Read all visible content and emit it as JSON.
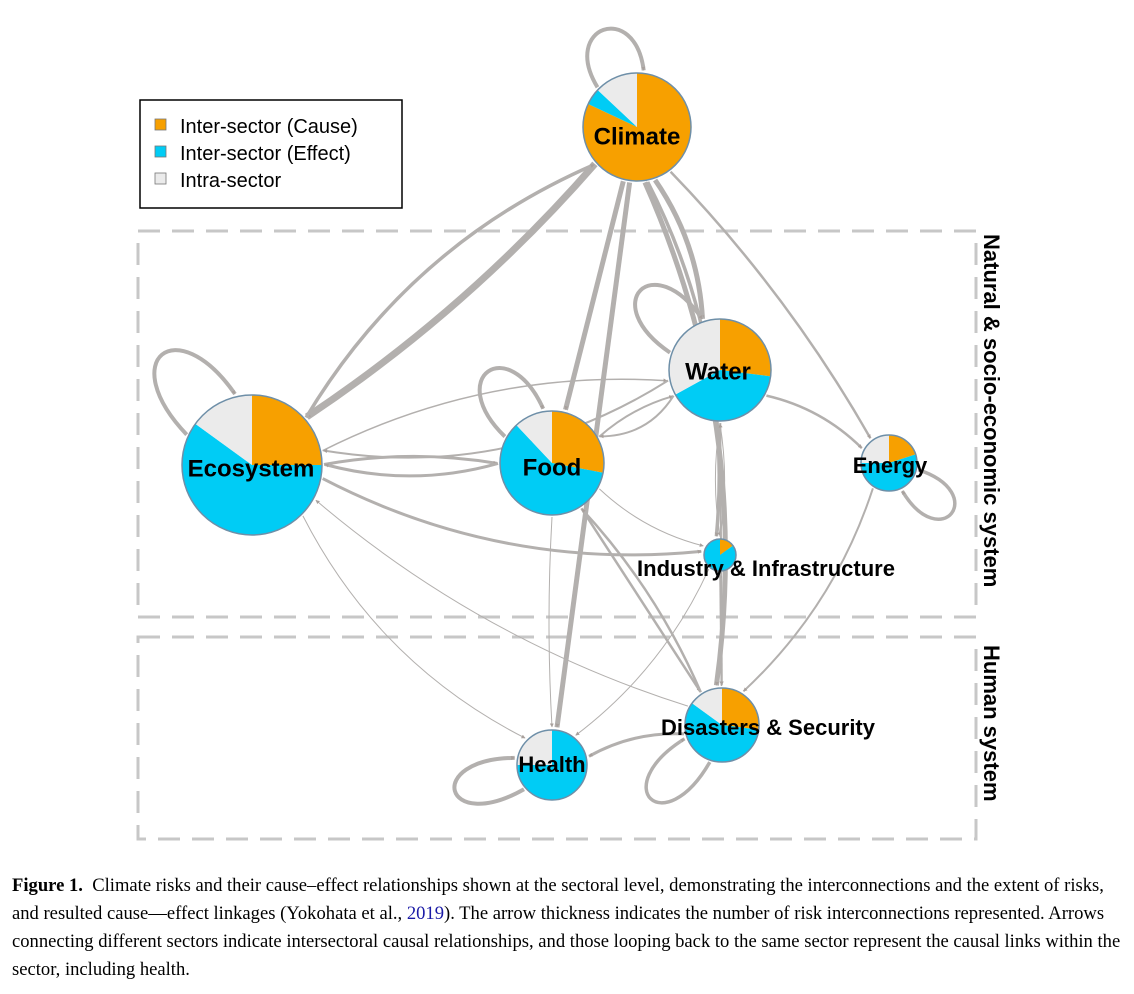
{
  "legend": {
    "items": [
      {
        "label": "Inter-sector (Cause)",
        "color": "#F7A000"
      },
      {
        "label": "Inter-sector (Effect)",
        "color": "#00CCF5"
      },
      {
        "label": "Intra-sector",
        "color": "#EBEBEB"
      }
    ]
  },
  "regions": {
    "natural": "Natural & socio-economic system",
    "human": "Human system"
  },
  "colors": {
    "cause": "#F7A000",
    "effect": "#00CCF5",
    "intra": "#EBEBEB",
    "edge": "#B3B0AE",
    "arrowhead": "#A8A09C"
  },
  "nodes": [
    {
      "id": "climate",
      "label": "Climate",
      "cause": 0.82,
      "effect": 0.05,
      "intra": 0.13
    },
    {
      "id": "ecosystem",
      "label": "Ecosystem",
      "cause": 0.25,
      "effect": 0.6,
      "intra": 0.15
    },
    {
      "id": "food",
      "label": "Food",
      "cause": 0.28,
      "effect": 0.6,
      "intra": 0.12
    },
    {
      "id": "water",
      "label": "Water",
      "cause": 0.27,
      "effect": 0.4,
      "intra": 0.33
    },
    {
      "id": "energy",
      "label": "Energy",
      "cause": 0.2,
      "effect": 0.55,
      "intra": 0.25
    },
    {
      "id": "industry",
      "label": "Industry & Infrastructure",
      "cause": 0.15,
      "effect": 0.85,
      "intra": 0.0
    },
    {
      "id": "disasters",
      "label": "Disasters & Security",
      "cause": 0.27,
      "effect": 0.58,
      "intra": 0.15
    },
    {
      "id": "health",
      "label": "Health",
      "cause": 0.0,
      "effect": 0.75,
      "intra": 0.25
    }
  ],
  "caption": {
    "label": "Figure 1.",
    "text_before": "Climate risks and their cause–effect relationships shown at the sectoral level, demonstrating the interconnections and the extent of risks, and resulted cause—effect linkages (Yokohata et al., ",
    "ref_year": "2019",
    "text_after": "). The arrow thickness indicates the number of risk interconnections represented. Arrows connecting different sectors indicate intersectoral causal relationships, and those looping back to the same sector represent the causal links within the sector, including health."
  }
}
